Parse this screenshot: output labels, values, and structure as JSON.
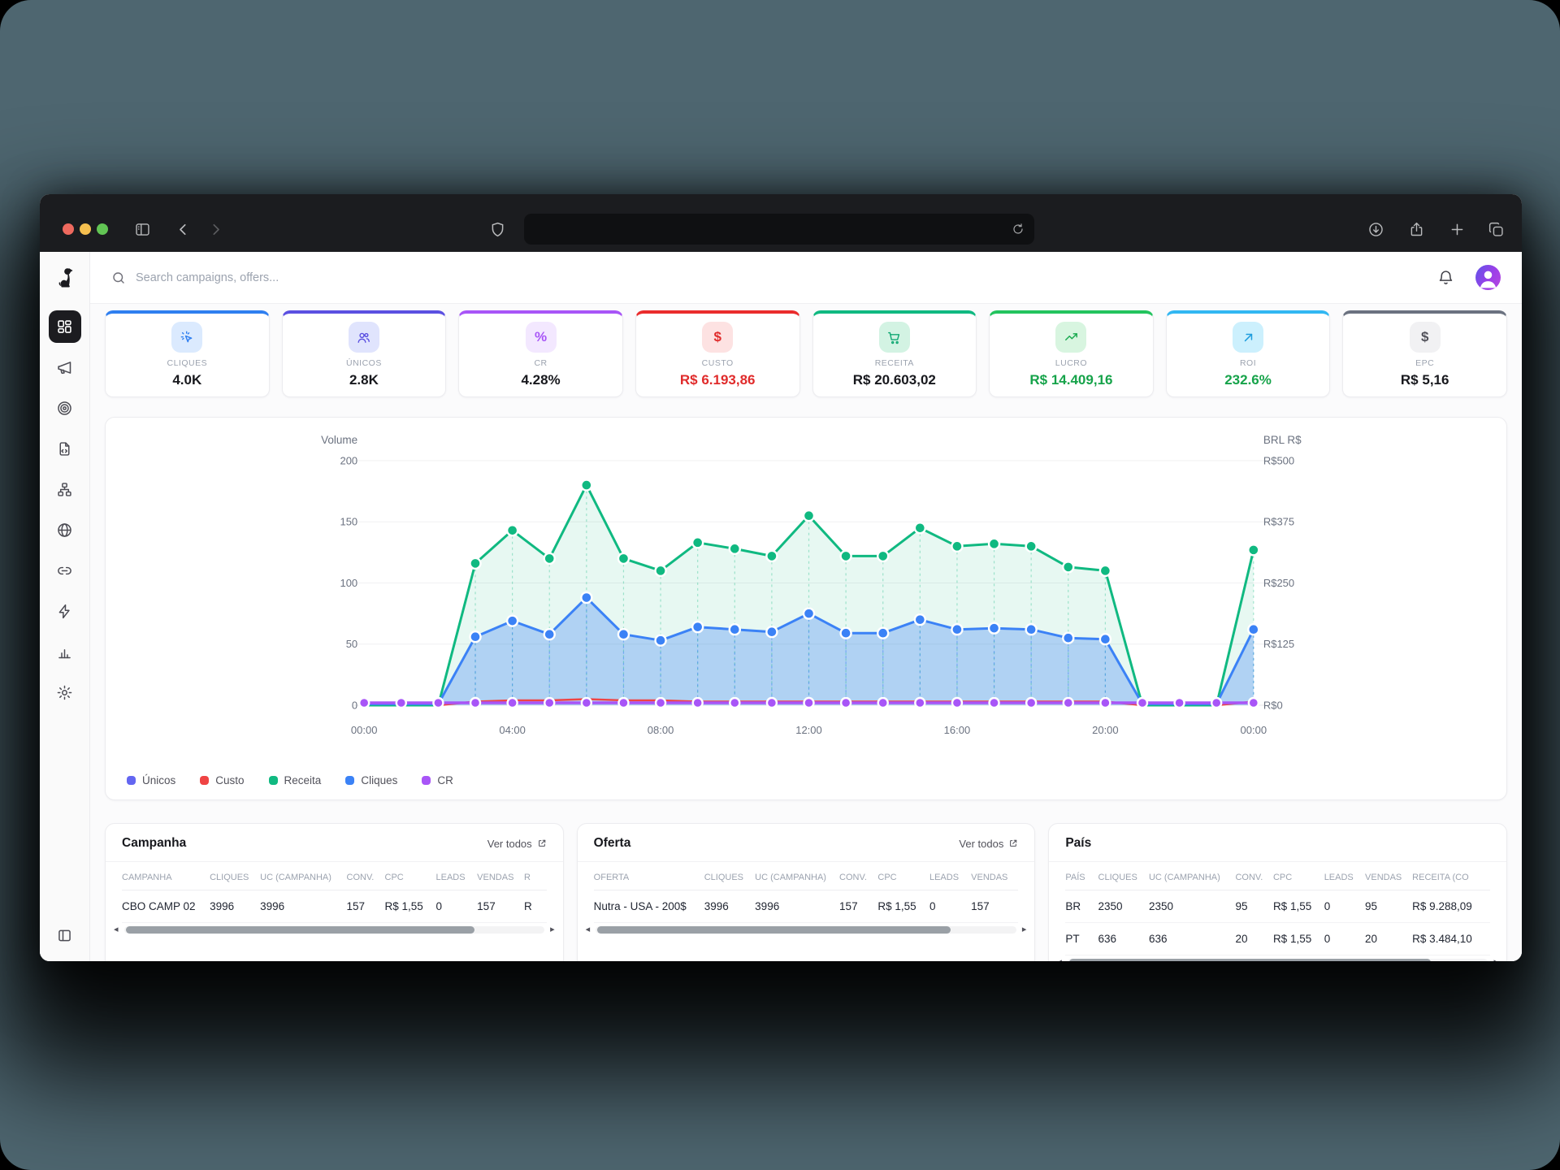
{
  "header": {
    "search_placeholder": "Search campaigns, offers..."
  },
  "kpis": [
    {
      "label": "CLIQUES",
      "value": "4.0K",
      "accent": "#2f7ff0",
      "icon": "cursor-click-icon",
      "icon_bg": "#dbeafe",
      "icon_color": "#2f7ff0",
      "value_color": "#17181d"
    },
    {
      "label": "ÚNICOS",
      "value": "2.8K",
      "accent": "#5b50e1",
      "icon": "users-icon",
      "icon_bg": "#e0e4fd",
      "icon_color": "#5b50e1",
      "value_color": "#17181d"
    },
    {
      "label": "CR",
      "value": "4.28%",
      "accent": "#a855f7",
      "icon": "percent-icon",
      "icon_bg": "#f3e8ff",
      "icon_color": "#a855f7",
      "value_color": "#17181d"
    },
    {
      "label": "CUSTO",
      "value": "R$ 6.193,86",
      "accent": "#ea2c2c",
      "icon": "dollar-icon",
      "icon_bg": "#fde2e2",
      "icon_color": "#e02b2b",
      "value_color": "#e02b2b"
    },
    {
      "label": "RECEITA",
      "value": "R$ 20.603,02",
      "accent": "#10b981",
      "icon": "cart-icon",
      "icon_bg": "#d3f3e3",
      "icon_color": "#10a873",
      "value_color": "#17181d"
    },
    {
      "label": "LUCRO",
      "value": "R$ 14.409,16",
      "accent": "#23c45e",
      "icon": "trend-up-icon",
      "icon_bg": "#d8f5e0",
      "icon_color": "#18a94e",
      "value_color": "#16a34a"
    },
    {
      "label": "ROI",
      "value": "232.6%",
      "accent": "#32b7f2",
      "icon": "arrow-up-right-icon",
      "icon_bg": "#ccf0fd",
      "icon_color": "#1f9ddd",
      "value_color": "#16a34a"
    },
    {
      "label": "EPC",
      "value": "R$ 5,16",
      "accent": "#6b7280",
      "icon": "dollar-icon",
      "icon_bg": "#f1f1f3",
      "icon_color": "#52525b",
      "value_color": "#17181d"
    }
  ],
  "chart_data": {
    "type": "area",
    "y_left": {
      "title": "Volume",
      "ticks": [
        "0",
        "50",
        "100",
        "150",
        "200"
      ],
      "max": 200
    },
    "y_right": {
      "title": "BRL R$",
      "ticks": [
        "R$0",
        "R$125",
        "R$250",
        "R$375",
        "R$500"
      ],
      "max": 500
    },
    "x_axis": {
      "labels": [
        "00:00",
        "04:00",
        "08:00",
        "12:00",
        "16:00",
        "20:00",
        "00:00"
      ],
      "label_hours": [
        0,
        4,
        8,
        12,
        16,
        20,
        24
      ],
      "points": 25
    },
    "series": [
      {
        "name": "Receita",
        "color": "#10b981",
        "fill": "rgba(16,185,129,0.10)",
        "width": 3,
        "dots": "nonzero",
        "values": [
          0,
          0,
          0,
          116,
          143,
          120,
          180,
          120,
          110,
          133,
          128,
          122,
          155,
          122,
          122,
          145,
          130,
          132,
          130,
          113,
          110,
          0,
          0,
          0,
          127
        ]
      },
      {
        "name": "Cliques",
        "color": "#3b82f6",
        "fill": "rgba(59,130,246,0.32)",
        "width": 3,
        "dots": "nonzero",
        "values": [
          1,
          1,
          1,
          56,
          69,
          58,
          88,
          58,
          53,
          64,
          62,
          60,
          75,
          59,
          59,
          70,
          62,
          63,
          62,
          55,
          54,
          1,
          1,
          1,
          62
        ]
      },
      {
        "name": "Custo",
        "color": "#ef4444",
        "fill": null,
        "width": 2.4,
        "dots": "none",
        "values": [
          0,
          0,
          0,
          3,
          4,
          4,
          5,
          4,
          4,
          3,
          3,
          3,
          3,
          3,
          3,
          3,
          3,
          3,
          3,
          3,
          3,
          0,
          0,
          0,
          3
        ]
      },
      {
        "name": "Únicos",
        "color": "#6366f1",
        "fill": null,
        "width": 2.4,
        "dots": "none",
        "values": [
          2,
          2,
          2,
          2,
          2,
          2,
          2,
          2,
          2,
          2,
          2,
          2,
          2,
          2,
          2,
          2,
          2,
          2,
          2,
          2,
          2,
          2,
          2,
          2,
          2
        ]
      },
      {
        "name": "CR",
        "color": "#a855f7",
        "fill": null,
        "width": 3.4,
        "dots": "all",
        "values": [
          2,
          2,
          2,
          2,
          2,
          2,
          2,
          2,
          2,
          2,
          2,
          2,
          2,
          2,
          2,
          2,
          2,
          2,
          2,
          2,
          2,
          2,
          2,
          2,
          2
        ]
      }
    ],
    "legend": [
      {
        "label": "Únicos",
        "color": "#6366f1"
      },
      {
        "label": "Custo",
        "color": "#ef4444"
      },
      {
        "label": "Receita",
        "color": "#10b981"
      },
      {
        "label": "Cliques",
        "color": "#3b82f6"
      },
      {
        "label": "CR",
        "color": "#a855f7"
      }
    ]
  },
  "tables": [
    {
      "title": "Campanha",
      "link": "Ver todos",
      "headers": [
        "CAMPANHA",
        "CLIQUES",
        "UC (CAMPANHA)",
        "CONV.",
        "CPC",
        "LEADS",
        "VENDAS",
        "R"
      ],
      "rows": [
        [
          "CBO CAMP 02",
          "3996",
          "3996",
          "157",
          "R$ 1,55",
          "0",
          "157",
          "R"
        ]
      ]
    },
    {
      "title": "Oferta",
      "link": "Ver todos",
      "headers": [
        "OFERTA",
        "CLIQUES",
        "UC (CAMPANHA)",
        "CONV.",
        "CPC",
        "LEADS",
        "VENDAS"
      ],
      "rows": [
        [
          "Nutra - USA - 200$",
          "3996",
          "3996",
          "157",
          "R$ 1,55",
          "0",
          "157"
        ]
      ]
    },
    {
      "title": "País",
      "link": null,
      "headers": [
        "PAÍS",
        "CLIQUES",
        "UC (CAMPANHA)",
        "CONV.",
        "CPC",
        "LEADS",
        "VENDAS",
        "RECEITA (CO"
      ],
      "rows": [
        [
          "BR",
          "2350",
          "2350",
          "95",
          "R$ 1,55",
          "0",
          "95",
          "R$ 9.288,09"
        ],
        [
          "PT",
          "636",
          "636",
          "20",
          "R$ 1,55",
          "0",
          "20",
          "R$ 3.484,10"
        ]
      ]
    }
  ]
}
